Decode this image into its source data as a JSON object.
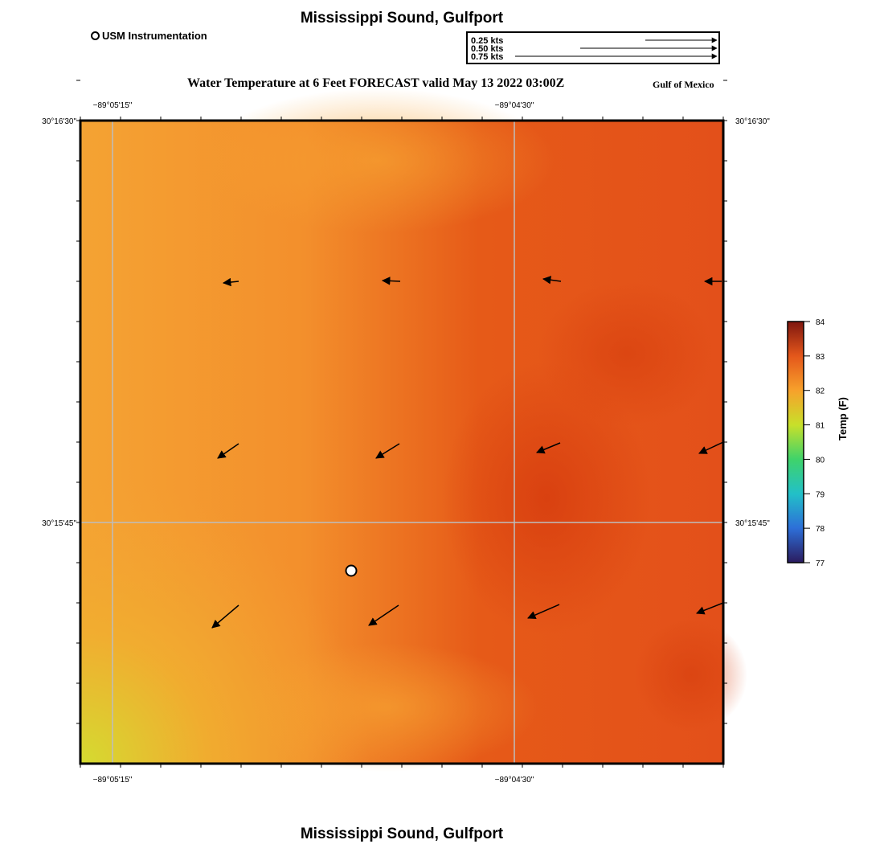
{
  "header": {
    "site_title": "Mississippi Sound, Gulfport",
    "marker_legend": "USM Instrumentation",
    "forecast_title": "Water Temperature at 6 Feet FORECAST valid May 13 2022 03:00Z",
    "region_label": "Gulf of Mexico"
  },
  "vector_scale": {
    "labels": [
      "0.25 kts",
      "0.50 kts",
      "0.75 kts"
    ],
    "values": [
      0.25,
      0.5,
      0.75
    ],
    "unit": "kts"
  },
  "map": {
    "lon_labels": [
      "−89°05'15\"",
      "−89°04'30\""
    ],
    "lat_labels": [
      "30°16'30\"",
      "30°15'45\""
    ],
    "grid_color": "#bdbdbd",
    "station_marker": "USM Instrumentation"
  },
  "colorbar": {
    "title": "Temp (F)",
    "ticks": [
      "84",
      "83",
      "82",
      "81",
      "80",
      "79",
      "78",
      "77"
    ],
    "min": 77,
    "max": 84,
    "colors": [
      "#2b1b5e",
      "#2d6fd8",
      "#22c0c8",
      "#3fd36a",
      "#c8e02a",
      "#f7a12b",
      "#e4571b",
      "#7f160f"
    ]
  },
  "footer": {
    "site_title": "Mississippi Sound, Gulfport"
  },
  "icons": {
    "station": "station-marker-icon",
    "vector": "current-arrow-icon"
  }
}
